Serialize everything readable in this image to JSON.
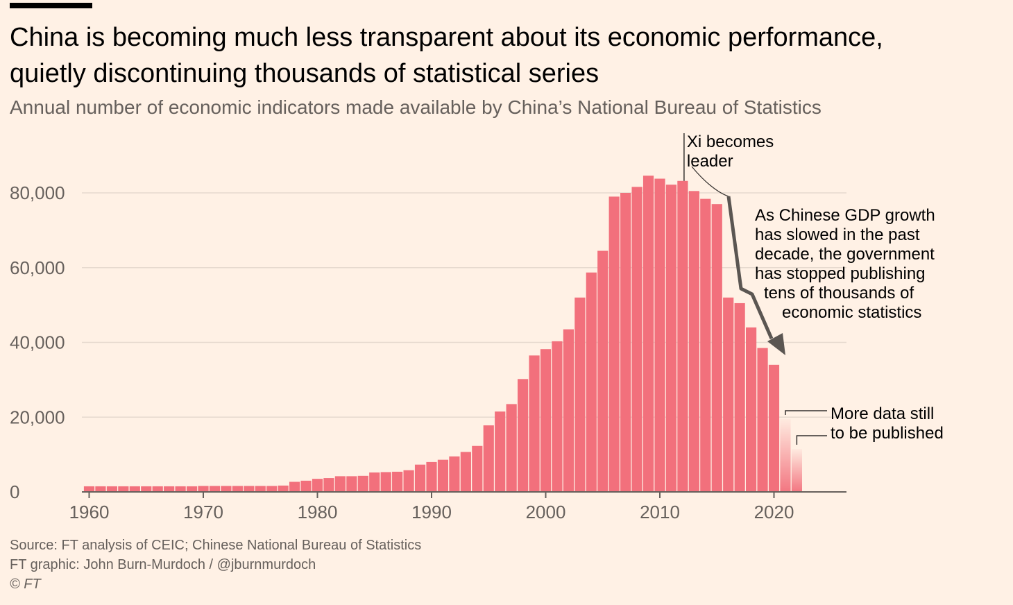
{
  "header": {
    "title_line1": "China is becoming much less transparent about its economic performance,",
    "title_line2": "quietly discontinuing thousands of statistical series",
    "subtitle": "Annual number of economic indicators made available by China’s National Bureau of Statistics"
  },
  "footer": {
    "source": "Source: FT analysis of CEIC; Chinese National Bureau of Statistics",
    "credit": "FT graphic: John Burn-Murdoch / @jburnmurdoch",
    "copyright": "© FT"
  },
  "annotations": {
    "xi_line1": "Xi becomes",
    "xi_line2": "leader",
    "gdp_lines": [
      "As Chinese GDP growth",
      "has slowed in the past",
      "decade, the government",
      "has stopped publishing",
      "tens of thousands of",
      "economic statistics"
    ],
    "more_line1": "More data still",
    "more_line2": "to be published"
  },
  "colors": {
    "background": "#fff1e5",
    "bar": "#f2707c",
    "bar_faded": "#f2707c",
    "grid": "#e6d9ce",
    "axis": "#66605c",
    "arrow": "#5b5652"
  },
  "chart_data": {
    "type": "bar",
    "title": "China is becoming much less transparent about its economic performance, quietly discontinuing thousands of statistical series",
    "subtitle": "Annual number of economic indicators made available by China’s National Bureau of Statistics",
    "xlabel": "",
    "ylabel": "",
    "xlim": [
      1960,
      2026
    ],
    "ylim": [
      0,
      80000
    ],
    "grid": true,
    "y_ticks": [
      0,
      20000,
      40000,
      60000,
      80000
    ],
    "y_tick_labels": [
      "0",
      "20,000",
      "40,000",
      "60,000",
      "80,000"
    ],
    "x_ticks": [
      1960,
      1970,
      1980,
      1990,
      2000,
      2010,
      2020
    ],
    "x_tick_labels": [
      "1960",
      "1970",
      "1980",
      "1990",
      "2000",
      "2010",
      "2020"
    ],
    "years": [
      1960,
      1961,
      1962,
      1963,
      1964,
      1965,
      1966,
      1967,
      1968,
      1969,
      1970,
      1971,
      1972,
      1973,
      1974,
      1975,
      1976,
      1977,
      1978,
      1979,
      1980,
      1981,
      1982,
      1983,
      1984,
      1985,
      1986,
      1987,
      1988,
      1989,
      1990,
      1991,
      1992,
      1993,
      1994,
      1995,
      1996,
      1997,
      1998,
      1999,
      2000,
      2001,
      2002,
      2003,
      2004,
      2005,
      2006,
      2007,
      2008,
      2009,
      2010,
      2011,
      2012,
      2013,
      2014,
      2015,
      2016,
      2017,
      2018,
      2019,
      2020,
      2021,
      2022
    ],
    "values": [
      1500,
      1500,
      1500,
      1500,
      1500,
      1500,
      1500,
      1500,
      1500,
      1500,
      1600,
      1600,
      1600,
      1600,
      1600,
      1600,
      1600,
      1700,
      2700,
      3000,
      3500,
      3700,
      4200,
      4200,
      4300,
      5200,
      5300,
      5400,
      5800,
      7300,
      8000,
      8600,
      9500,
      10700,
      12300,
      17800,
      21500,
      23500,
      30200,
      36500,
      38200,
      40300,
      43500,
      52000,
      58700,
      64500,
      79000,
      80000,
      81600,
      84600,
      83800,
      82200,
      83200,
      80500,
      78400,
      77000,
      52000,
      50500,
      44000,
      38500,
      34000,
      19500,
      11500
    ],
    "provisional_years": [
      2021,
      2022
    ],
    "annotation_year": 2012
  }
}
